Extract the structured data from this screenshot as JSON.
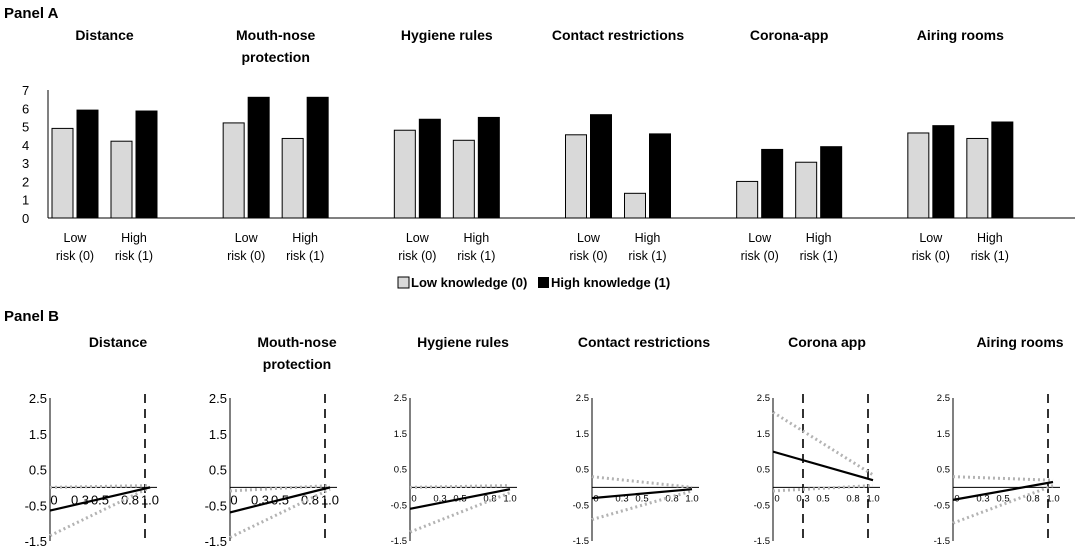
{
  "panelA": {
    "label": "Panel A",
    "ytick_labels": [
      "0",
      "1",
      "2",
      "3",
      "4",
      "5",
      "6",
      "7"
    ],
    "ylim": [
      0,
      7
    ],
    "category_lines": [
      [
        "Low",
        "risk (0)"
      ],
      [
        "High",
        "risk (1)"
      ]
    ],
    "legend": {
      "low": "Low knowledge (0)",
      "high": "High knowledge (1)"
    },
    "colors": {
      "low": "#d9d9d9",
      "high": "#000000",
      "edge": "#000000"
    }
  },
  "panelB": {
    "label": "Panel B",
    "ytick_labels": [
      "2.5",
      "1.5",
      "0.5",
      "-0.5",
      "-1.5"
    ],
    "xtick_labels": [
      "0",
      "0.3",
      "0.5",
      "0.8",
      "1.0"
    ],
    "colors": {
      "line": "#000000",
      "ci": "#b3b3b3"
    }
  },
  "chart_data": [
    {
      "type": "bar",
      "panel": "A",
      "title": "Panel A",
      "xlabel": "",
      "ylabel": "",
      "ylim": [
        0,
        7
      ],
      "categories": [
        "Low risk (0)",
        "High risk (1)"
      ],
      "groups": [
        {
          "title": [
            "Distance"
          ],
          "series": [
            {
              "name": "Low knowledge (0)",
              "values": [
                4.9,
                4.2
              ]
            },
            {
              "name": "High knowledge (1)",
              "values": [
                5.9,
                5.85
              ]
            }
          ]
        },
        {
          "title": [
            "Mouth-nose",
            "protection"
          ],
          "series": [
            {
              "name": "Low knowledge (0)",
              "values": [
                5.2,
                4.35
              ]
            },
            {
              "name": "High knowledge (1)",
              "values": [
                6.6,
                6.6
              ]
            }
          ]
        },
        {
          "title": [
            "Hygiene rules"
          ],
          "series": [
            {
              "name": "Low knowledge (0)",
              "values": [
                4.8,
                4.25
              ]
            },
            {
              "name": "High knowledge (1)",
              "values": [
                5.4,
                5.5
              ]
            }
          ]
        },
        {
          "title": [
            "Contact restrictions"
          ],
          "series": [
            {
              "name": "Low knowledge (0)",
              "values": [
                4.55,
                1.35
              ]
            },
            {
              "name": "High knowledge (1)",
              "values": [
                5.65,
                4.6
              ]
            }
          ]
        },
        {
          "title": [
            "Corona-app"
          ],
          "series": [
            {
              "name": "Low knowledge (0)",
              "values": [
                2.0,
                3.05
              ]
            },
            {
              "name": "High knowledge (1)",
              "values": [
                3.75,
                3.9
              ]
            }
          ]
        },
        {
          "title": [
            "Airing rooms"
          ],
          "series": [
            {
              "name": "Low knowledge (0)",
              "values": [
                4.65,
                4.35
              ]
            },
            {
              "name": "High knowledge (1)",
              "values": [
                5.05,
                5.25
              ]
            }
          ]
        }
      ]
    },
    {
      "type": "line",
      "panel": "B",
      "title": "Panel B",
      "xlim": [
        0,
        1.05
      ],
      "ylim": [
        -1.5,
        2.5
      ],
      "subplots": [
        {
          "title": [
            "Distance"
          ],
          "small_ticks": false,
          "vlines": [
            0.95
          ],
          "effect": [
            [
              0,
              -0.65
            ],
            [
              1.0,
              0.0
            ]
          ],
          "ci_upper": [
            [
              0,
              0.0
            ],
            [
              1.0,
              0.05
            ]
          ],
          "ci_lower": [
            [
              0,
              -1.35
            ],
            [
              1.0,
              0.0
            ]
          ]
        },
        {
          "title": [
            "Mouth-nose",
            "protection"
          ],
          "small_ticks": false,
          "vlines": [
            0.95
          ],
          "effect": [
            [
              0,
              -0.7
            ],
            [
              1.0,
              0.0
            ]
          ],
          "ci_upper": [
            [
              0,
              -0.1
            ],
            [
              1.0,
              0.05
            ]
          ],
          "ci_lower": [
            [
              0,
              -1.4
            ],
            [
              1.0,
              -0.05
            ]
          ]
        },
        {
          "title": [
            "Hygiene rules"
          ],
          "small_ticks": true,
          "vlines": [],
          "effect": [
            [
              0,
              -0.6
            ],
            [
              1.0,
              -0.05
            ]
          ],
          "ci_upper": [
            [
              0,
              0.0
            ],
            [
              1.0,
              0.05
            ]
          ],
          "ci_lower": [
            [
              0,
              -1.25
            ],
            [
              1.0,
              -0.15
            ]
          ]
        },
        {
          "title": [
            "Contact restrictions"
          ],
          "small_ticks": true,
          "vlines": [],
          "effect": [
            [
              0,
              -0.3
            ],
            [
              1.0,
              -0.05
            ]
          ],
          "ci_upper": [
            [
              0,
              0.3
            ],
            [
              1.0,
              0.0
            ]
          ],
          "ci_lower": [
            [
              0,
              -0.9
            ],
            [
              1.0,
              -0.1
            ]
          ]
        },
        {
          "title": [
            "Corona app"
          ],
          "small_ticks": true,
          "vlines": [
            0.3,
            0.95
          ],
          "effect": [
            [
              0,
              1.0
            ],
            [
              1.0,
              0.2
            ]
          ],
          "ci_upper": [
            [
              0,
              2.1
            ],
            [
              1.0,
              0.35
            ]
          ],
          "ci_lower": [
            [
              0,
              -0.1
            ],
            [
              1.0,
              0.05
            ]
          ]
        },
        {
          "title": [
            "Airing rooms"
          ],
          "small_ticks": true,
          "vlines": [
            0.95
          ],
          "effect": [
            [
              0,
              -0.35
            ],
            [
              1.0,
              0.15
            ]
          ],
          "ci_upper": [
            [
              0,
              0.3
            ],
            [
              1.0,
              0.2
            ]
          ],
          "ci_lower": [
            [
              0,
              -1.0
            ],
            [
              1.0,
              0.05
            ]
          ]
        }
      ]
    }
  ]
}
